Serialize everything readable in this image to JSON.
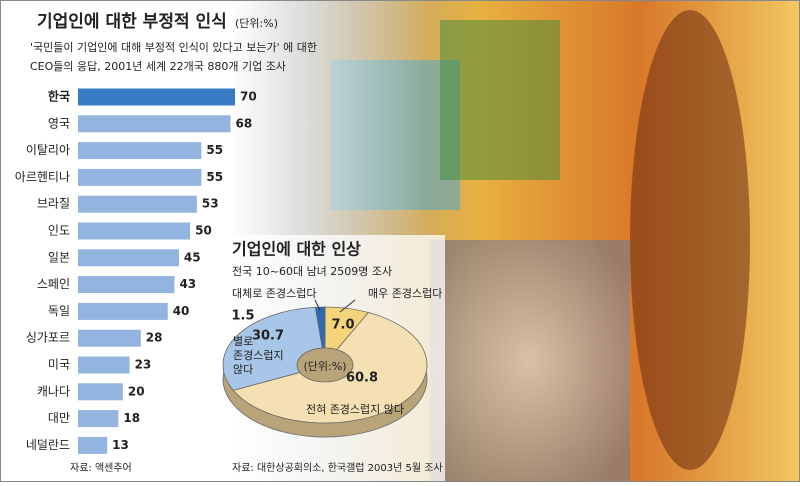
{
  "chart_data": [
    {
      "type": "hbar",
      "title": "기업인에 대한 부정적 인식",
      "subtitle": "(단위:%)",
      "description": [
        "'국민들이 기업인에 대해 부정적 인식이 있다고 보는가' 에 대한",
        "CEO들의 응답, 2001년 세계 22개국 880개 기업 조사"
      ],
      "categories": [
        "한국",
        "영국",
        "이탈리아",
        "아르헨티나",
        "브라질",
        "인도",
        "일본",
        "스페인",
        "독일",
        "싱가포르",
        "미국",
        "캐나다",
        "대만",
        "네덜란드"
      ],
      "values": [
        70,
        68,
        55,
        55,
        53,
        50,
        45,
        43,
        40,
        28,
        23,
        20,
        18,
        13
      ],
      "colors": [
        "#3a7cc3",
        "#92b4df",
        "#92b4df",
        "#92b4df",
        "#92b4df",
        "#92b4df",
        "#92b4df",
        "#92b4df",
        "#92b4df",
        "#92b4df",
        "#92b4df",
        "#92b4df",
        "#92b4df",
        "#92b4df"
      ],
      "source": "자료: 액센추어"
    },
    {
      "type": "donut",
      "title": "기업인에 대한 인상",
      "subtitle": "전국 10~60대 남녀 2509명 조사",
      "center_label": "(단위:%)",
      "categories": [
        "매우 존경스럽다",
        "전혀 존경스럽지 않다",
        "별로 존경스럽지 않다",
        "대체로 존경스럽다"
      ],
      "values": [
        7.0,
        60.8,
        30.7,
        1.5
      ],
      "value_labels": [
        "7.0",
        "60.8",
        "30.7",
        "1.5"
      ],
      "colors": [
        "#f4d47a",
        "#f4e0b2",
        "#a8c6e7",
        "#2f6bb3"
      ],
      "source": "자료: 대한상공회의소, 한국갤럽 2003년 5월 조사"
    }
  ]
}
